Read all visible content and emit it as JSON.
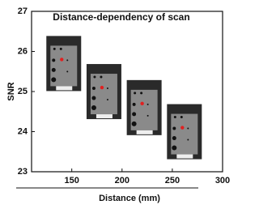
{
  "chart_data": {
    "type": "scatter",
    "title": "Distance-dependency of scan",
    "x_label": "Distance (mm)",
    "y_label": "SNR",
    "x": [
      140,
      180,
      220,
      260
    ],
    "values": [
      25.8,
      25.1,
      24.7,
      24.1
    ],
    "color": "#e02020",
    "xlim": [
      110,
      300
    ],
    "ylim": [
      23,
      27
    ],
    "xticks": [
      150,
      200,
      250,
      300
    ],
    "yticks": [
      23,
      24,
      25,
      26,
      27
    ]
  }
}
